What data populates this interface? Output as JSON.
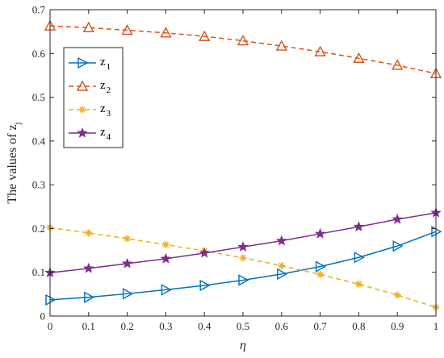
{
  "chart_data": {
    "type": "line",
    "xlabel": "η",
    "ylabel": "The values of z",
    "ylabel_subscript": "j",
    "xlim": [
      0,
      1
    ],
    "ylim": [
      0,
      0.7
    ],
    "xticks": [
      0,
      0.1,
      0.2,
      0.3,
      0.4,
      0.5,
      0.6,
      0.7,
      0.8,
      0.9,
      1
    ],
    "xtick_labels": [
      "0",
      "0.1",
      "0.2",
      "0.3",
      "0.4",
      "0.5",
      "0.6",
      "0.7",
      "0.8",
      "0.9",
      "1"
    ],
    "yticks": [
      0,
      0.1,
      0.2,
      0.3,
      0.4,
      0.5,
      0.6,
      0.7
    ],
    "ytick_labels": [
      "0",
      "0.1",
      "0.2",
      "0.3",
      "0.4",
      "0.5",
      "0.6",
      "0.7"
    ],
    "grid": false,
    "legend_position": "upper-left",
    "x": [
      0,
      0.1,
      0.2,
      0.3,
      0.4,
      0.5,
      0.6,
      0.7,
      0.8,
      0.9,
      1
    ],
    "series": [
      {
        "name": "z",
        "subscript": "1",
        "color": "#0072BD",
        "marker": "triangle-right",
        "dash": "solid",
        "values": [
          0.037,
          0.043,
          0.051,
          0.06,
          0.07,
          0.082,
          0.096,
          0.113,
          0.134,
          0.16,
          0.193
        ]
      },
      {
        "name": "z",
        "subscript": "2",
        "color": "#D95319",
        "marker": "triangle-up",
        "dash": "dashed",
        "values": [
          0.663,
          0.659,
          0.653,
          0.647,
          0.639,
          0.629,
          0.617,
          0.604,
          0.589,
          0.573,
          0.554
        ]
      },
      {
        "name": "z",
        "subscript": "3",
        "color": "#EDB120",
        "marker": "asterisk",
        "dash": "dashed",
        "values": [
          0.202,
          0.19,
          0.177,
          0.163,
          0.149,
          0.133,
          0.115,
          0.095,
          0.073,
          0.048,
          0.02
        ]
      },
      {
        "name": "z",
        "subscript": "4",
        "color": "#7E2F8E",
        "marker": "star",
        "dash": "solid",
        "values": [
          0.099,
          0.109,
          0.12,
          0.131,
          0.144,
          0.158,
          0.172,
          0.188,
          0.204,
          0.221,
          0.236
        ]
      }
    ]
  }
}
